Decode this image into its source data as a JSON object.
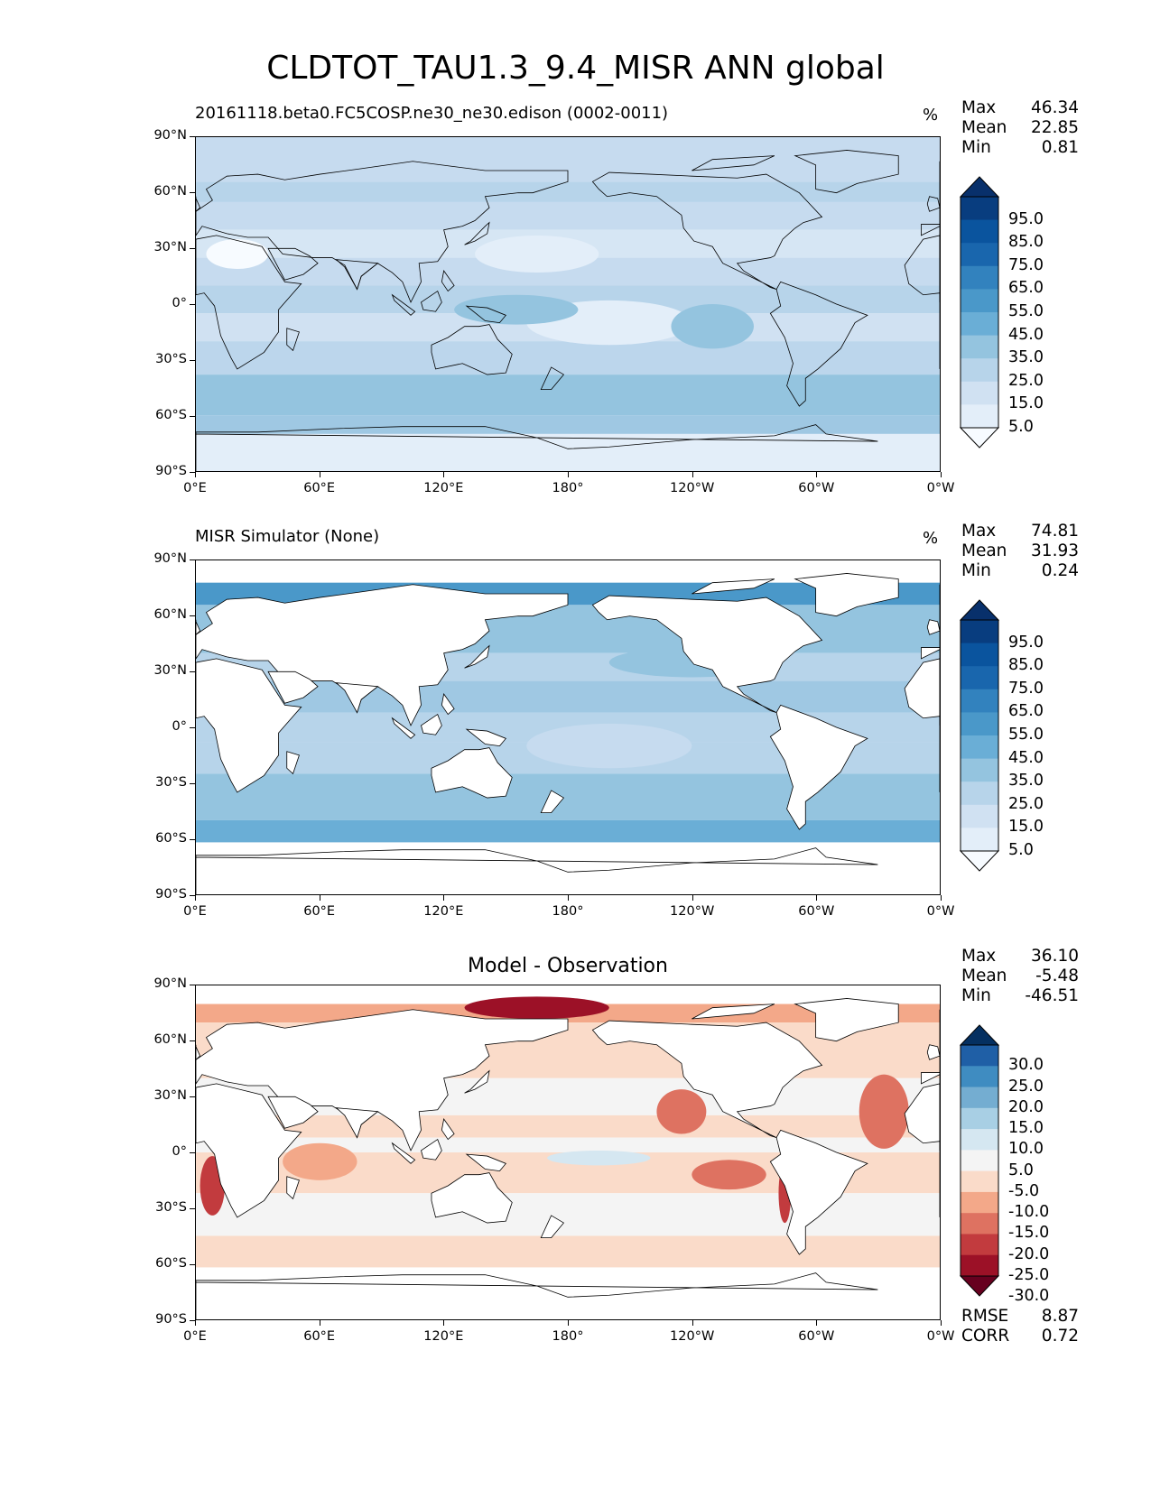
{
  "title": "CLDTOT_TAU1.3_9.4_MISR ANN global",
  "x_ticks": [
    "0°E",
    "60°E",
    "120°E",
    "180°",
    "120°W",
    "60°W",
    "0°W"
  ],
  "y_ticks": [
    "90°N",
    "60°N",
    "30°N",
    "0°",
    "30°S",
    "60°S",
    "90°S"
  ],
  "panels": [
    {
      "id": "model",
      "left_label": "20161118.beta0.FC5COSP.ne30_ne30.edison (0002-0011)",
      "center_label": "",
      "units": "%",
      "stats": [
        {
          "k": "Max",
          "v": "46.34"
        },
        {
          "k": "Mean",
          "v": "22.85"
        },
        {
          "k": "Min",
          "v": "0.81"
        }
      ],
      "colorbar_ticks": [
        "95.0",
        "85.0",
        "75.0",
        "65.0",
        "55.0",
        "45.0",
        "35.0",
        "25.0",
        "15.0",
        "5.0"
      ],
      "colorbar_colors": [
        "#08306b",
        "#083d7f",
        "#0a549e",
        "#1966ad",
        "#3282be",
        "#4a98c9",
        "#6aaed6",
        "#94c4df",
        "#b7d4ea",
        "#d0e1f2",
        "#e3eef9",
        "#f7fbff"
      ],
      "footer": []
    },
    {
      "id": "obs",
      "left_label": "MISR Simulator (None)",
      "center_label": "",
      "units": "%",
      "stats": [
        {
          "k": "Max",
          "v": "74.81"
        },
        {
          "k": "Mean",
          "v": "31.93"
        },
        {
          "k": "Min",
          "v": "0.24"
        }
      ],
      "colorbar_ticks": [
        "95.0",
        "85.0",
        "75.0",
        "65.0",
        "55.0",
        "45.0",
        "35.0",
        "25.0",
        "15.0",
        "5.0"
      ],
      "colorbar_colors": [
        "#08306b",
        "#083d7f",
        "#0a549e",
        "#1966ad",
        "#3282be",
        "#4a98c9",
        "#6aaed6",
        "#94c4df",
        "#b7d4ea",
        "#d0e1f2",
        "#e3eef9",
        "#f7fbff"
      ],
      "footer": []
    },
    {
      "id": "diff",
      "left_label": "",
      "center_label": "Model - Observation",
      "units": "",
      "stats": [
        {
          "k": "Max",
          "v": "36.10"
        },
        {
          "k": "Mean",
          "v": "-5.48"
        },
        {
          "k": "Min",
          "v": "-46.51"
        }
      ],
      "colorbar_ticks": [
        "30.0",
        "25.0",
        "20.0",
        "15.0",
        "10.0",
        "5.0",
        "-5.0",
        "-10.0",
        "-15.0",
        "-20.0",
        "-25.0",
        "-30.0"
      ],
      "colorbar_colors": [
        "#053061",
        "#1f5fa6",
        "#3f8cc1",
        "#74add1",
        "#a8cfe4",
        "#d5e7f1",
        "#f4f4f4",
        "#fadbc9",
        "#f3a889",
        "#de7261",
        "#c23b3e",
        "#9c1127",
        "#67001f"
      ],
      "footer": [
        {
          "k": "RMSE",
          "v": "8.87"
        },
        {
          "k": "CORR",
          "v": "0.72"
        }
      ]
    }
  ]
}
